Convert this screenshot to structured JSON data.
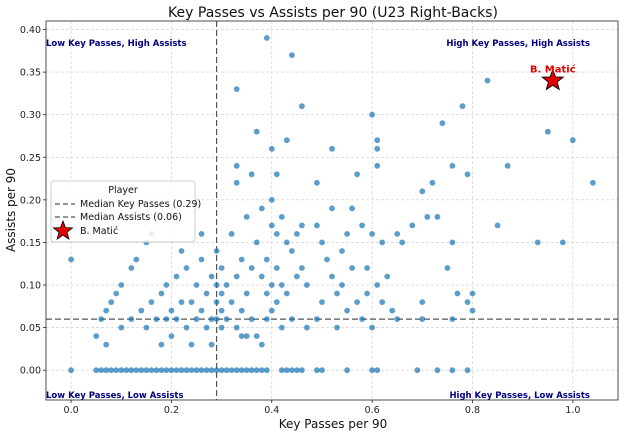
{
  "chart_data": {
    "type": "scatter",
    "title": "Key Passes vs Assists per 90 (U23 Right-Backs)",
    "xlabel": "Key Passes per 90",
    "ylabel": "Assists per 90",
    "xlim": [
      -0.05,
      1.09
    ],
    "ylim": [
      -0.035,
      0.41
    ],
    "xticks": [
      "0.0",
      "0.2",
      "0.4",
      "0.6",
      "0.8",
      "1.0"
    ],
    "yticks": [
      "0.00",
      "0.05",
      "0.10",
      "0.15",
      "0.20",
      "0.25",
      "0.30",
      "0.35",
      "0.40"
    ],
    "grid": true,
    "colors": {
      "points": "#1f77b4",
      "highlight": "#e00000",
      "quadrant_text": "#000080",
      "median_line": "#555555"
    },
    "median_key_passes": 0.29,
    "median_assists": 0.06,
    "quadrant_labels": {
      "top_left": "Low Key Passes, High Assists",
      "top_right": "High Key Passes, High Assists",
      "bottom_left": "Low Key Passes, Low Assists",
      "bottom_right": "High Key Passes, Low Assists"
    },
    "legend": {
      "title": "Player",
      "position": "center-left",
      "entries": [
        "Median Key Passes (0.29)",
        "Median Assists (0.06)",
        "B. Matić"
      ]
    },
    "highlight": {
      "name": "B. Matić",
      "x": 0.96,
      "y": 0.34
    },
    "points": [
      [
        0.0,
        0.0
      ],
      [
        0.0,
        0.13
      ],
      [
        0.05,
        0.04
      ],
      [
        0.05,
        0.0
      ],
      [
        0.06,
        0.0
      ],
      [
        0.07,
        0.0
      ],
      [
        0.08,
        0.0
      ],
      [
        0.09,
        0.0
      ],
      [
        0.1,
        0.0
      ],
      [
        0.11,
        0.0
      ],
      [
        0.12,
        0.0
      ],
      [
        0.13,
        0.0
      ],
      [
        0.14,
        0.0
      ],
      [
        0.15,
        0.0
      ],
      [
        0.16,
        0.0
      ],
      [
        0.17,
        0.0
      ],
      [
        0.18,
        0.0
      ],
      [
        0.19,
        0.0
      ],
      [
        0.2,
        0.0
      ],
      [
        0.21,
        0.0
      ],
      [
        0.22,
        0.0
      ],
      [
        0.23,
        0.0
      ],
      [
        0.24,
        0.0
      ],
      [
        0.25,
        0.0
      ],
      [
        0.26,
        0.0
      ],
      [
        0.27,
        0.0
      ],
      [
        0.28,
        0.0
      ],
      [
        0.29,
        0.0
      ],
      [
        0.3,
        0.0
      ],
      [
        0.31,
        0.0
      ],
      [
        0.32,
        0.0
      ],
      [
        0.33,
        0.0
      ],
      [
        0.34,
        0.0
      ],
      [
        0.35,
        0.0
      ],
      [
        0.36,
        0.0
      ],
      [
        0.37,
        0.0
      ],
      [
        0.38,
        0.0
      ],
      [
        0.39,
        0.0
      ],
      [
        0.42,
        0.0
      ],
      [
        0.43,
        0.0
      ],
      [
        0.44,
        0.0
      ],
      [
        0.45,
        0.0
      ],
      [
        0.46,
        0.0
      ],
      [
        0.49,
        0.0
      ],
      [
        0.5,
        0.0
      ],
      [
        0.55,
        0.0
      ],
      [
        0.6,
        0.0
      ],
      [
        0.61,
        0.0
      ],
      [
        0.69,
        0.0
      ],
      [
        0.73,
        0.0
      ],
      [
        0.76,
        0.0
      ],
      [
        0.79,
        0.0
      ],
      [
        0.06,
        0.06
      ],
      [
        0.07,
        0.07
      ],
      [
        0.07,
        0.03
      ],
      [
        0.08,
        0.08
      ],
      [
        0.09,
        0.09
      ],
      [
        0.1,
        0.1
      ],
      [
        0.1,
        0.05
      ],
      [
        0.12,
        0.12
      ],
      [
        0.12,
        0.06
      ],
      [
        0.13,
        0.13
      ],
      [
        0.14,
        0.07
      ],
      [
        0.15,
        0.15
      ],
      [
        0.15,
        0.05
      ],
      [
        0.16,
        0.16
      ],
      [
        0.16,
        0.08
      ],
      [
        0.17,
        0.06
      ],
      [
        0.18,
        0.09
      ],
      [
        0.18,
        0.03
      ],
      [
        0.19,
        0.1
      ],
      [
        0.19,
        0.06
      ],
      [
        0.2,
        0.07
      ],
      [
        0.2,
        0.04
      ],
      [
        0.21,
        0.11
      ],
      [
        0.21,
        0.06
      ],
      [
        0.22,
        0.14
      ],
      [
        0.22,
        0.08
      ],
      [
        0.23,
        0.12
      ],
      [
        0.23,
        0.05
      ],
      [
        0.24,
        0.08
      ],
      [
        0.24,
        0.03
      ],
      [
        0.25,
        0.1
      ],
      [
        0.25,
        0.06
      ],
      [
        0.26,
        0.16
      ],
      [
        0.26,
        0.13
      ],
      [
        0.26,
        0.07
      ],
      [
        0.27,
        0.09
      ],
      [
        0.27,
        0.05
      ],
      [
        0.28,
        0.11
      ],
      [
        0.28,
        0.06
      ],
      [
        0.28,
        0.03
      ],
      [
        0.29,
        0.14
      ],
      [
        0.29,
        0.1
      ],
      [
        0.29,
        0.08
      ],
      [
        0.29,
        0.06
      ],
      [
        0.3,
        0.12
      ],
      [
        0.3,
        0.09
      ],
      [
        0.3,
        0.07
      ],
      [
        0.3,
        0.05
      ],
      [
        0.31,
        0.1
      ],
      [
        0.31,
        0.06
      ],
      [
        0.32,
        0.16
      ],
      [
        0.32,
        0.08
      ],
      [
        0.33,
        0.11
      ],
      [
        0.33,
        0.05
      ],
      [
        0.34,
        0.13
      ],
      [
        0.34,
        0.07
      ],
      [
        0.34,
        0.04
      ],
      [
        0.35,
        0.18
      ],
      [
        0.35,
        0.09
      ],
      [
        0.35,
        0.04
      ],
      [
        0.36,
        0.12
      ],
      [
        0.36,
        0.06
      ],
      [
        0.37,
        0.15
      ],
      [
        0.37,
        0.04
      ],
      [
        0.38,
        0.19
      ],
      [
        0.38,
        0.11
      ],
      [
        0.38,
        0.03
      ],
      [
        0.39,
        0.13
      ],
      [
        0.39,
        0.09
      ],
      [
        0.39,
        0.06
      ],
      [
        0.4,
        0.2
      ],
      [
        0.4,
        0.17
      ],
      [
        0.4,
        0.1
      ],
      [
        0.4,
        0.07
      ],
      [
        0.41,
        0.16
      ],
      [
        0.41,
        0.12
      ],
      [
        0.41,
        0.08
      ],
      [
        0.42,
        0.18
      ],
      [
        0.42,
        0.1
      ],
      [
        0.42,
        0.05
      ],
      [
        0.43,
        0.15
      ],
      [
        0.43,
        0.09
      ],
      [
        0.44,
        0.14
      ],
      [
        0.44,
        0.06
      ],
      [
        0.45,
        0.16
      ],
      [
        0.45,
        0.11
      ],
      [
        0.46,
        0.17
      ],
      [
        0.46,
        0.12
      ],
      [
        0.47,
        0.1
      ],
      [
        0.47,
        0.05
      ],
      [
        0.33,
        0.33
      ],
      [
        0.39,
        0.39
      ],
      [
        0.44,
        0.37
      ],
      [
        0.46,
        0.31
      ],
      [
        0.37,
        0.28
      ],
      [
        0.4,
        0.26
      ],
      [
        0.43,
        0.27
      ],
      [
        0.33,
        0.24
      ],
      [
        0.33,
        0.22
      ],
      [
        0.36,
        0.23
      ],
      [
        0.41,
        0.23
      ],
      [
        0.49,
        0.22
      ],
      [
        0.52,
        0.26
      ],
      [
        0.52,
        0.19
      ],
      [
        0.49,
        0.17
      ],
      [
        0.5,
        0.15
      ],
      [
        0.51,
        0.13
      ],
      [
        0.52,
        0.11
      ],
      [
        0.53,
        0.09
      ],
      [
        0.54,
        0.14
      ],
      [
        0.55,
        0.16
      ],
      [
        0.56,
        0.19
      ],
      [
        0.57,
        0.23
      ],
      [
        0.58,
        0.17
      ],
      [
        0.59,
        0.12
      ],
      [
        0.6,
        0.3
      ],
      [
        0.61,
        0.27
      ],
      [
        0.61,
        0.26
      ],
      [
        0.61,
        0.24
      ],
      [
        0.6,
        0.16
      ],
      [
        0.61,
        0.1
      ],
      [
        0.62,
        0.15
      ],
      [
        0.63,
        0.11
      ],
      [
        0.64,
        0.07
      ],
      [
        0.65,
        0.16
      ],
      [
        0.66,
        0.15
      ],
      [
        0.68,
        0.17
      ],
      [
        0.7,
        0.21
      ],
      [
        0.71,
        0.18
      ],
      [
        0.72,
        0.22
      ],
      [
        0.73,
        0.18
      ],
      [
        0.74,
        0.29
      ],
      [
        0.75,
        0.12
      ],
      [
        0.76,
        0.24
      ],
      [
        0.76,
        0.15
      ],
      [
        0.77,
        0.09
      ],
      [
        0.78,
        0.31
      ],
      [
        0.79,
        0.23
      ],
      [
        0.8,
        0.09
      ],
      [
        0.8,
        0.07
      ],
      [
        0.83,
        0.34
      ],
      [
        0.85,
        0.17
      ],
      [
        0.87,
        0.24
      ],
      [
        0.93,
        0.15
      ],
      [
        0.95,
        0.28
      ],
      [
        0.98,
        0.15
      ],
      [
        1.0,
        0.27
      ],
      [
        1.04,
        0.22
      ],
      [
        0.49,
        0.06
      ],
      [
        0.5,
        0.08
      ],
      [
        0.53,
        0.05
      ],
      [
        0.54,
        0.1
      ],
      [
        0.55,
        0.07
      ],
      [
        0.56,
        0.12
      ],
      [
        0.57,
        0.08
      ],
      [
        0.58,
        0.06
      ],
      [
        0.59,
        0.09
      ],
      [
        0.6,
        0.05
      ],
      [
        0.62,
        0.08
      ],
      [
        0.65,
        0.06
      ],
      [
        0.7,
        0.08
      ],
      [
        0.7,
        0.06
      ],
      [
        0.76,
        0.06
      ],
      [
        0.79,
        0.08
      ]
    ]
  }
}
